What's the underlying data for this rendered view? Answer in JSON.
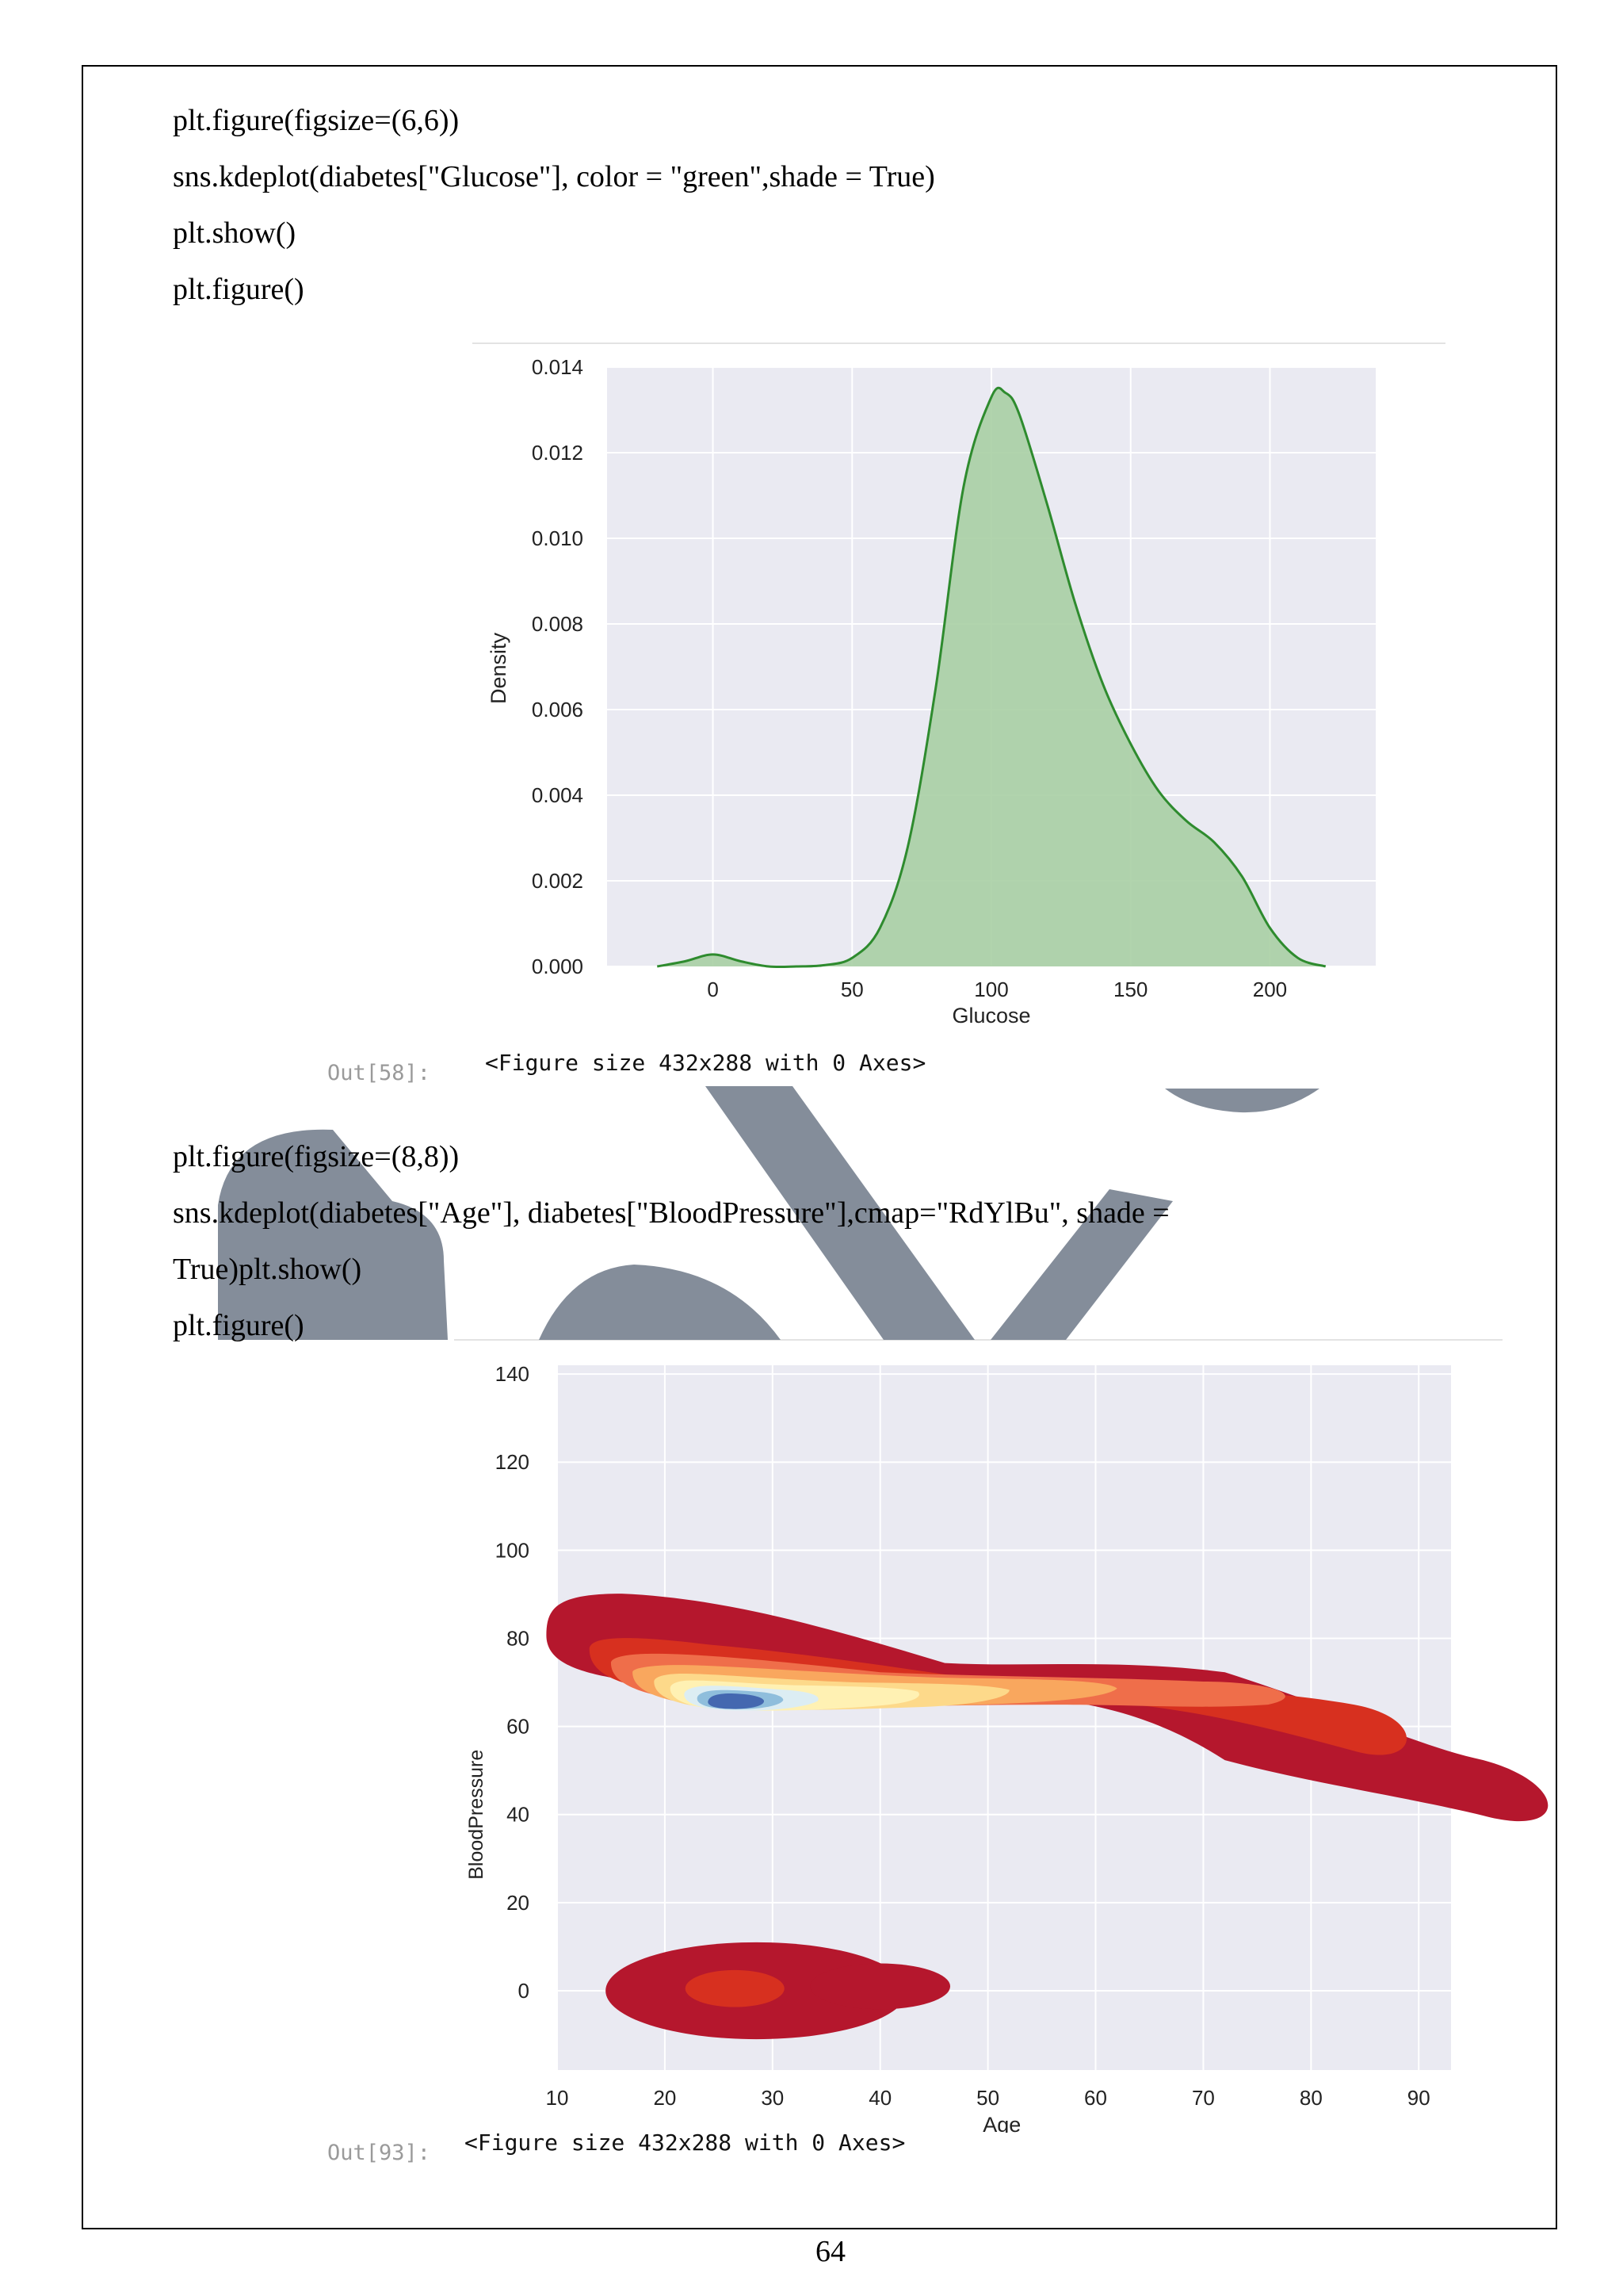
{
  "code_block_1": [
    "plt.figure(figsize=(6,6))",
    "sns.kdeplot(diabetes[\"Glucose\"], color = \"green\",shade = True)",
    "plt.show()",
    "plt.figure()"
  ],
  "code_block_2": [
    "plt.figure(figsize=(8,8))",
    "sns.kdeplot(diabetes[\"Age\"], diabetes[\"BloodPressure\"],cmap=\"RdYlBu\", shade =",
    "True)plt.show()",
    "plt.figure()"
  ],
  "output_1": {
    "prompt": "Out[58]:",
    "text": "<Figure size 432x288 with 0 Axes>"
  },
  "output_2": {
    "prompt": "Out[93]:",
    "text": "<Figure size 432x288 with 0 Axes>"
  },
  "page_number": "64",
  "colors": {
    "kde_line": "#2e8b2e",
    "kde_fill": "#a9cfa4",
    "plot_bg": "#eaeaf2",
    "watermark": "#848d9a"
  },
  "chart_data": [
    {
      "type": "area",
      "xlabel": "Glucose",
      "ylabel": "Density",
      "x_ticks": [
        0,
        50,
        100,
        150,
        200
      ],
      "y_ticks": [
        0.0,
        0.002,
        0.004,
        0.006,
        0.008,
        0.01,
        0.012,
        0.014
      ],
      "x_tick_labels": [
        "0",
        "50",
        "100",
        "150",
        "200"
      ],
      "y_tick_labels": [
        "0.000",
        "0.002",
        "0.004",
        "0.006",
        "0.008",
        "0.010",
        "0.012",
        "0.014"
      ],
      "xlim": [
        -38,
        238
      ],
      "ylim": [
        0,
        0.014
      ],
      "grid": true,
      "x": [
        -20,
        -10,
        0,
        10,
        20,
        30,
        40,
        50,
        60,
        70,
        80,
        90,
        100,
        105,
        110,
        120,
        130,
        140,
        150,
        160,
        170,
        180,
        190,
        200,
        210,
        220
      ],
      "y": [
        0.0,
        0.00012,
        0.00028,
        0.00012,
        0.0,
        0.0,
        3e-05,
        0.0002,
        0.0009,
        0.0028,
        0.0065,
        0.0112,
        0.0133,
        0.0134,
        0.0129,
        0.0108,
        0.0085,
        0.0066,
        0.0052,
        0.0041,
        0.0034,
        0.0029,
        0.0021,
        0.0009,
        0.0002,
        0.0
      ]
    },
    {
      "type": "heatmap",
      "xlabel": "Age",
      "ylabel": "BloodPressure",
      "x_ticks": [
        10,
        20,
        30,
        40,
        50,
        60,
        70,
        80,
        90
      ],
      "y_ticks": [
        0,
        20,
        40,
        60,
        80,
        100,
        120,
        140
      ],
      "x_tick_labels": [
        "10",
        "20",
        "30",
        "40",
        "50",
        "60",
        "70",
        "80",
        "90"
      ],
      "y_tick_labels": [
        "0",
        "20",
        "40",
        "60",
        "80",
        "100",
        "120",
        "140"
      ],
      "xlim": [
        10,
        93
      ],
      "ylim": [
        -18,
        142
      ],
      "cmap": "RdYlBu",
      "grid": true,
      "modes": [
        {
          "age": 26,
          "blood_pressure": 66
        },
        {
          "age": 26,
          "blood_pressure": 1
        }
      ]
    }
  ]
}
